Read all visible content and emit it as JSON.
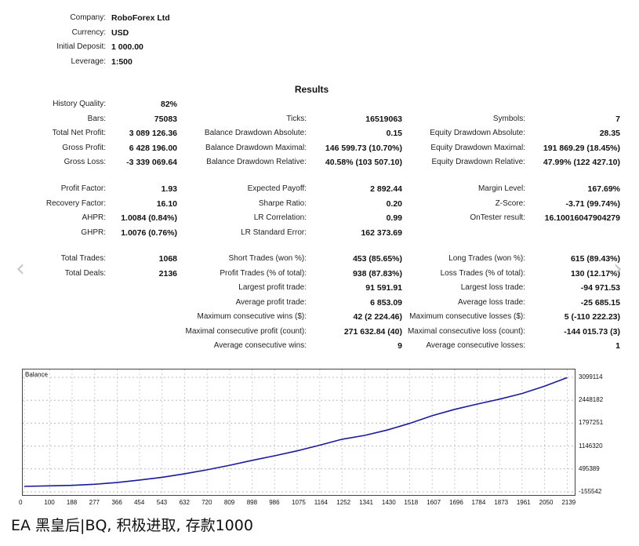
{
  "header": {
    "company_label": "Company:",
    "company": "RoboForex Ltd",
    "currency_label": "Currency:",
    "currency": "USD",
    "deposit_label": "Initial Deposit:",
    "deposit": "1 000.00",
    "leverage_label": "Leverage:",
    "leverage": "1:500"
  },
  "results_title": "Results",
  "col1": [
    {
      "label": "History Quality:",
      "value": "82%"
    },
    {
      "label": "Bars:",
      "value": "75083"
    },
    {
      "label": "Total Net Profit:",
      "value": "3 089 126.36"
    },
    {
      "label": "Gross Profit:",
      "value": "6 428 196.00"
    },
    {
      "label": "Gross Loss:",
      "value": "-3 339 069.64"
    },
    {
      "label": "Profit Factor:",
      "value": "1.93"
    },
    {
      "label": "Recovery Factor:",
      "value": "16.10"
    },
    {
      "label": "AHPR:",
      "value": "1.0084 (0.84%)"
    },
    {
      "label": "GHPR:",
      "value": "1.0076 (0.76%)"
    },
    {
      "label": "Total Trades:",
      "value": "1068"
    },
    {
      "label": "Total Deals:",
      "value": "2136"
    }
  ],
  "col2": [
    {
      "label": "Ticks:",
      "value": "16519063"
    },
    {
      "label": "Balance Drawdown Absolute:",
      "value": "0.15"
    },
    {
      "label": "Balance Drawdown Maximal:",
      "value": "146 599.73 (10.70%)"
    },
    {
      "label": "Balance Drawdown Relative:",
      "value": "40.58% (103 507.10)"
    },
    {
      "label": "Expected Payoff:",
      "value": "2 892.44"
    },
    {
      "label": "Sharpe Ratio:",
      "value": "0.20"
    },
    {
      "label": "LR Correlation:",
      "value": "0.99"
    },
    {
      "label": "LR Standard Error:",
      "value": "162 373.69"
    },
    {
      "label": "Short Trades (won %):",
      "value": "453 (85.65%)"
    },
    {
      "label": "Profit Trades (% of total):",
      "value": "938 (87.83%)"
    },
    {
      "label": "Largest profit trade:",
      "value": "91 591.91"
    },
    {
      "label": "Average profit trade:",
      "value": "6 853.09"
    },
    {
      "label": "Maximum consecutive wins ($):",
      "value": "42 (2 224.46)"
    },
    {
      "label": "Maximal consecutive profit (count):",
      "value": "271 632.84 (40)"
    },
    {
      "label": "Average consecutive wins:",
      "value": "9"
    }
  ],
  "col3": [
    {
      "label": "Symbols:",
      "value": "7"
    },
    {
      "label": "Equity Drawdown Absolute:",
      "value": "28.35"
    },
    {
      "label": "Equity Drawdown Maximal:",
      "value": "191 869.29 (18.45%)"
    },
    {
      "label": "Equity Drawdown Relative:",
      "value": "47.99% (122 427.10)"
    },
    {
      "label": "Margin Level:",
      "value": "167.69%"
    },
    {
      "label": "Z-Score:",
      "value": "-3.71 (99.74%)"
    },
    {
      "label": "OnTester result:",
      "value": "16.10016047904279"
    },
    {
      "label": "Long Trades (won %):",
      "value": "615 (89.43%)"
    },
    {
      "label": "Loss Trades (% of total):",
      "value": "130 (12.17%)"
    },
    {
      "label": "Largest loss trade:",
      "value": "-94 971.53"
    },
    {
      "label": "Average loss trade:",
      "value": "-25 685.15"
    },
    {
      "label": "Maximum consecutive losses ($):",
      "value": "5 (-110 222.23)"
    },
    {
      "label": "Maximal consecutive loss (count):",
      "value": "-144 015.73 (3)"
    },
    {
      "label": "Average consecutive losses:",
      "value": "1"
    }
  ],
  "nav": {
    "prev_icon": "chevron-left-icon",
    "next_icon": "chevron-right-icon",
    "prev_glyph": "‹",
    "next_glyph": "›"
  },
  "caption": "EA 黑皇后|BQ, 积极进取, 存款1000",
  "chart_data": {
    "type": "line",
    "title": "Balance",
    "color": "#1a1a9c",
    "x_ticks": [
      "0",
      "100",
      "188",
      "277",
      "366",
      "454",
      "543",
      "632",
      "720",
      "809",
      "898",
      "986",
      "1075",
      "1164",
      "1252",
      "1341",
      "1430",
      "1518",
      "1607",
      "1696",
      "1784",
      "1873",
      "1961",
      "2050",
      "2139"
    ],
    "y_ticks": [
      "3099114",
      "2448182",
      "1797251",
      "1146320",
      "495389",
      "-155542"
    ],
    "ylim": [
      -155542,
      3099114
    ],
    "xlim": [
      0,
      2150
    ],
    "grid": true,
    "x": [
      0,
      100,
      188,
      277,
      366,
      454,
      543,
      632,
      720,
      809,
      898,
      986,
      1075,
      1164,
      1252,
      1341,
      1430,
      1518,
      1607,
      1696,
      1784,
      1873,
      1961,
      2050,
      2139
    ],
    "values": [
      1000,
      15000,
      30000,
      60000,
      110000,
      180000,
      260000,
      360000,
      470000,
      600000,
      740000,
      870000,
      1010000,
      1170000,
      1340000,
      1450000,
      1600000,
      1790000,
      2010000,
      2190000,
      2340000,
      2480000,
      2640000,
      2850000,
      3089126
    ]
  }
}
